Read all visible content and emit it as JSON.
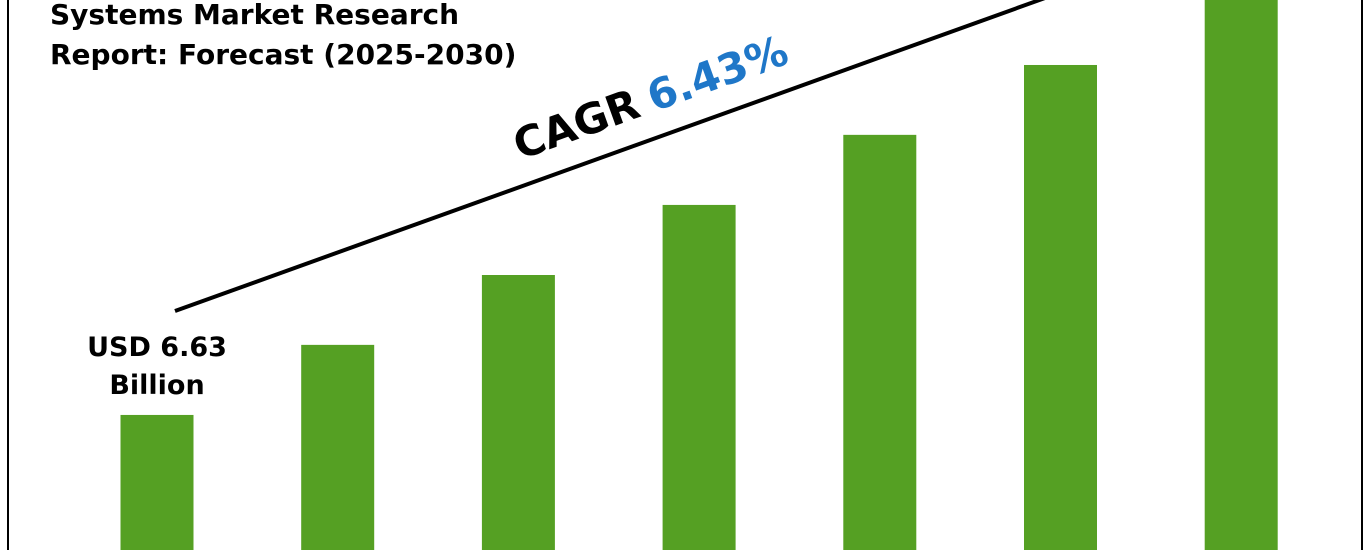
{
  "chart_data": {
    "type": "bar",
    "title_lines": [
      "Systems Market Research",
      "Report: Forecast (2025-2030)"
    ],
    "annotation": {
      "label": "CAGR",
      "value": "6.43%"
    },
    "categories": [
      null,
      null,
      null,
      null,
      null,
      null,
      null
    ],
    "values": [
      6.63,
      10.07,
      13.5,
      16.94,
      20.38,
      23.81,
      27
    ],
    "value_labels": [
      "USD 6.63 Billion",
      null,
      null,
      null,
      null,
      null,
      null
    ],
    "color": "#55a023",
    "annotation_color": "#1f77c8",
    "ylim": [
      0,
      27
    ]
  }
}
